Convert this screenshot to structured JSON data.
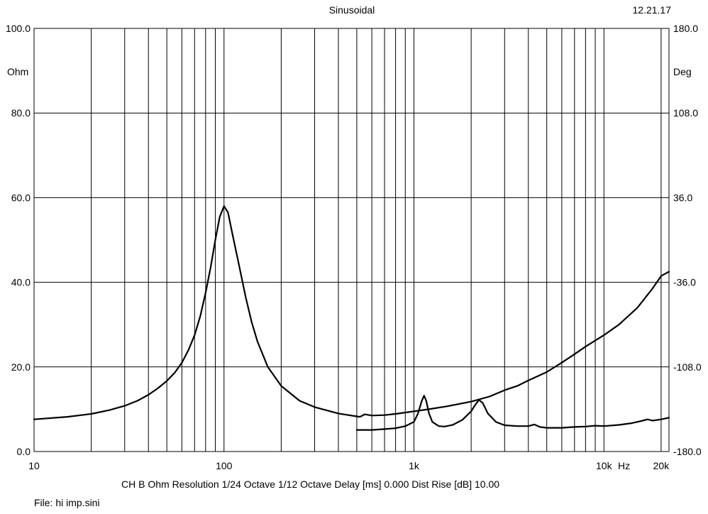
{
  "header": {
    "title": "Sinusoidal",
    "date": "12.21.17"
  },
  "footer": {
    "settings": "CH B   Ohm   Resolution 1/24 Octave   1/12 Octave   Delay [ms] 0.000   Dist Rise [dB] 10.00",
    "file": "File: hi imp.sini"
  },
  "chart_data": {
    "type": "line",
    "x_scale": "log",
    "x_range": [
      10,
      22000
    ],
    "x_ticks": [
      {
        "v": 10,
        "label": "10"
      },
      {
        "v": 100,
        "label": "100"
      },
      {
        "v": 1000,
        "label": "1k"
      },
      {
        "v": 10000,
        "label": "10k"
      },
      {
        "v": 20000,
        "label": "20k"
      }
    ],
    "x_unit_label": "Hz",
    "y_left": {
      "range": [
        0,
        100
      ],
      "unit": "Ohm",
      "ticks": [
        {
          "v": 0,
          "label": "0.0"
        },
        {
          "v": 20,
          "label": "20.0"
        },
        {
          "v": 40,
          "label": "40.0"
        },
        {
          "v": 60,
          "label": "60.0"
        },
        {
          "v": 80,
          "label": "80.0"
        },
        {
          "v": 100,
          "label": "100.0"
        }
      ]
    },
    "y_right": {
      "range": [
        -180,
        180
      ],
      "unit": "Deg",
      "ticks": [
        {
          "v": 180,
          "label": "180.0"
        },
        {
          "v": 108,
          "label": "108.0"
        },
        {
          "v": 36,
          "label": "36.0"
        },
        {
          "v": -36,
          "label": "-36.0"
        },
        {
          "v": -108,
          "label": "-108.0"
        },
        {
          "v": -180,
          "label": "-180.0"
        }
      ]
    },
    "grid": true,
    "series": [
      {
        "axis": "left",
        "points": [
          [
            10,
            7.6
          ],
          [
            15,
            8.2
          ],
          [
            20,
            8.9
          ],
          [
            25,
            9.8
          ],
          [
            30,
            10.8
          ],
          [
            35,
            12.0
          ],
          [
            40,
            13.4
          ],
          [
            45,
            15.0
          ],
          [
            50,
            16.7
          ],
          [
            55,
            18.6
          ],
          [
            60,
            21.0
          ],
          [
            65,
            24.0
          ],
          [
            70,
            27.5
          ],
          [
            75,
            32.0
          ],
          [
            80,
            37.5
          ],
          [
            85,
            43.5
          ],
          [
            90,
            50.0
          ],
          [
            95,
            55.5
          ],
          [
            100,
            58.0
          ],
          [
            105,
            56.5
          ],
          [
            110,
            52.0
          ],
          [
            120,
            44.0
          ],
          [
            130,
            36.5
          ],
          [
            140,
            30.5
          ],
          [
            150,
            26.0
          ],
          [
            170,
            20.0
          ],
          [
            200,
            15.5
          ],
          [
            250,
            12.0
          ],
          [
            300,
            10.5
          ],
          [
            400,
            9.0
          ],
          [
            500,
            8.3
          ],
          [
            520,
            8.2
          ],
          [
            550,
            8.8
          ],
          [
            600,
            8.5
          ],
          [
            700,
            8.6
          ],
          [
            800,
            8.9
          ],
          [
            1000,
            9.5
          ],
          [
            1200,
            10.0
          ],
          [
            1500,
            10.7
          ],
          [
            2000,
            11.8
          ],
          [
            2500,
            13.0
          ],
          [
            3000,
            14.5
          ],
          [
            3500,
            15.5
          ],
          [
            4000,
            16.8
          ],
          [
            5000,
            18.8
          ],
          [
            6000,
            21.0
          ],
          [
            7000,
            23.0
          ],
          [
            8000,
            24.8
          ],
          [
            10000,
            27.5
          ],
          [
            12000,
            30.0
          ],
          [
            15000,
            34.0
          ],
          [
            18000,
            38.5
          ],
          [
            20000,
            41.5
          ],
          [
            22000,
            42.5
          ]
        ]
      },
      {
        "axis": "left",
        "points": [
          [
            500,
            5.1
          ],
          [
            600,
            5.1
          ],
          [
            700,
            5.3
          ],
          [
            800,
            5.5
          ],
          [
            900,
            6.0
          ],
          [
            1000,
            7.0
          ],
          [
            1050,
            9.0
          ],
          [
            1100,
            12.0
          ],
          [
            1130,
            13.2
          ],
          [
            1160,
            12.0
          ],
          [
            1200,
            9.0
          ],
          [
            1250,
            7.0
          ],
          [
            1350,
            6.0
          ],
          [
            1450,
            5.9
          ],
          [
            1600,
            6.3
          ],
          [
            1800,
            7.5
          ],
          [
            2000,
            9.5
          ],
          [
            2100,
            11.0
          ],
          [
            2200,
            12.2
          ],
          [
            2300,
            11.5
          ],
          [
            2450,
            9.0
          ],
          [
            2700,
            7.0
          ],
          [
            3000,
            6.2
          ],
          [
            3500,
            6.0
          ],
          [
            4000,
            6.0
          ],
          [
            4300,
            6.4
          ],
          [
            4600,
            5.8
          ],
          [
            5000,
            5.6
          ],
          [
            6000,
            5.6
          ],
          [
            7000,
            5.8
          ],
          [
            8000,
            5.9
          ],
          [
            9000,
            6.1
          ],
          [
            10000,
            6.0
          ],
          [
            12000,
            6.3
          ],
          [
            14000,
            6.7
          ],
          [
            16000,
            7.3
          ],
          [
            17000,
            7.6
          ],
          [
            18000,
            7.3
          ],
          [
            20000,
            7.6
          ],
          [
            22000,
            8.0
          ]
        ]
      }
    ]
  }
}
